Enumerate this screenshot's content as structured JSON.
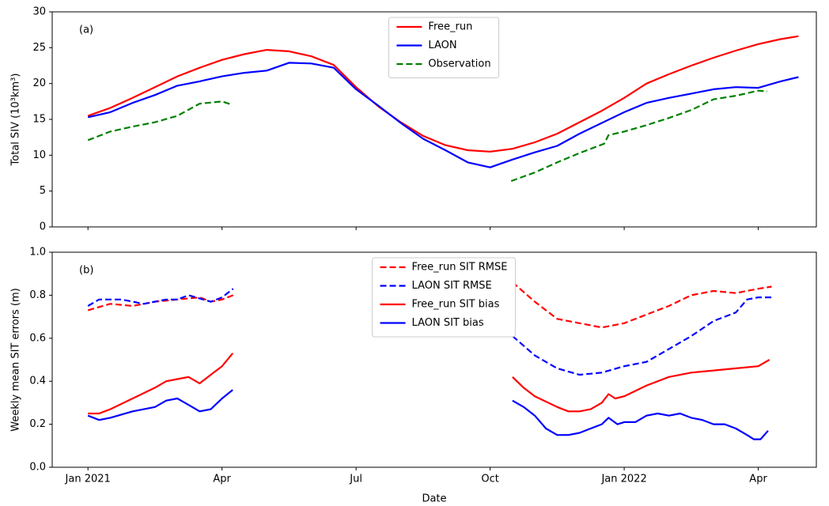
{
  "chart_data": [
    {
      "type": "line",
      "panel_label": "(a)",
      "ylabel": "Total SIV (10³km³)",
      "xlim": [
        -0.8,
        16.3
      ],
      "ylim": [
        0,
        30
      ],
      "yticks": [
        0,
        5,
        10,
        15,
        20,
        25,
        30
      ],
      "legend": "upper center",
      "series": [
        {
          "name": "Free_run",
          "color": "#ff0000",
          "dash": false,
          "x": [
            0,
            0.5,
            1,
            1.5,
            2,
            2.5,
            3,
            3.5,
            4,
            4.5,
            5,
            5.5,
            6,
            6.5,
            7,
            7.5,
            8,
            8.5,
            9,
            9.5,
            10,
            10.5,
            11,
            11.5,
            12,
            12.5,
            13,
            13.5,
            14,
            14.5,
            15,
            15.5,
            15.9
          ],
          "values": [
            15.5,
            16.6,
            18.0,
            19.5,
            21.0,
            22.2,
            23.3,
            24.1,
            24.7,
            24.5,
            23.8,
            22.6,
            19.5,
            16.8,
            14.6,
            12.7,
            11.4,
            10.7,
            10.5,
            10.9,
            11.8,
            13.0,
            14.6,
            16.2,
            18.0,
            20.0,
            21.3,
            22.5,
            23.6,
            24.6,
            25.5,
            26.2,
            26.6
          ]
        },
        {
          "name": "LAON",
          "color": "#0000ff",
          "dash": false,
          "x": [
            0,
            0.5,
            1,
            1.5,
            2,
            2.5,
            3,
            3.5,
            4,
            4.5,
            5,
            5.5,
            6,
            6.5,
            7,
            7.5,
            8,
            8.5,
            9,
            9.5,
            10,
            10.5,
            11,
            11.5,
            12,
            12.5,
            13,
            13.5,
            14,
            14.5,
            15,
            15.5,
            15.9
          ],
          "values": [
            15.3,
            16.0,
            17.3,
            18.4,
            19.7,
            20.3,
            21.0,
            21.5,
            21.8,
            22.9,
            22.8,
            22.2,
            19.2,
            16.9,
            14.5,
            12.3,
            10.7,
            9.0,
            8.3,
            9.4,
            10.4,
            11.3,
            13.0,
            14.5,
            16.0,
            17.3,
            18.0,
            18.6,
            19.2,
            19.5,
            19.4,
            20.3,
            20.9
          ]
        },
        {
          "name": "Observation",
          "color": "#008000",
          "dash": true,
          "x": [
            0,
            0.5,
            1,
            1.5,
            2,
            2.5,
            3,
            3.2,
            null,
            9.47,
            10,
            10.5,
            11,
            11.55,
            11.65,
            12,
            12.5,
            13,
            13.5,
            14,
            14.5,
            15,
            15.2
          ],
          "values": [
            12.1,
            13.3,
            14.0,
            14.6,
            15.5,
            17.2,
            17.5,
            17.1,
            null,
            6.4,
            7.6,
            9.0,
            10.3,
            11.6,
            12.8,
            13.3,
            14.2,
            15.2,
            16.3,
            17.8,
            18.3,
            19.0,
            18.9
          ]
        }
      ]
    },
    {
      "type": "line",
      "panel_label": "(b)",
      "ylabel": "Weekly mean SIT errors (m)",
      "xlabel": "Date",
      "xlim": [
        -0.8,
        16.3
      ],
      "ylim": [
        0,
        1
      ],
      "xticks": [
        {
          "value": 0,
          "label": "Jan 2021"
        },
        {
          "value": 3,
          "label": "Apr"
        },
        {
          "value": 6,
          "label": "Jul"
        },
        {
          "value": 9,
          "label": "Oct"
        },
        {
          "value": 12,
          "label": "Jan 2022"
        },
        {
          "value": 15,
          "label": "Apr"
        }
      ],
      "yticks": [
        {
          "value": 0,
          "label": "0.0"
        },
        0.2,
        0.4,
        0.6,
        0.8,
        {
          "value": 1,
          "label": "1.0"
        }
      ],
      "legend": "upper center",
      "series": [
        {
          "name": "Free_run SIT RMSE",
          "color": "#ff0000",
          "dash": true,
          "x": [
            0,
            0.5,
            1,
            1.5,
            2,
            2.5,
            2.75,
            3,
            3.25,
            null,
            9.5,
            10,
            10.5,
            11,
            11.5,
            12,
            12.5,
            13,
            13.5,
            14,
            14.5,
            15,
            15.3
          ],
          "values": [
            0.73,
            0.76,
            0.75,
            0.77,
            0.78,
            0.79,
            0.77,
            0.78,
            0.8,
            null,
            0.86,
            0.77,
            0.69,
            0.67,
            0.65,
            0.67,
            0.71,
            0.75,
            0.8,
            0.82,
            0.81,
            0.83,
            0.84
          ]
        },
        {
          "name": "LAON SIT RMSE",
          "color": "#0000ff",
          "dash": true,
          "x": [
            0,
            0.25,
            0.75,
            1.25,
            1.75,
            2,
            2.25,
            2.75,
            3,
            3.25,
            null,
            9.5,
            10,
            10.5,
            11,
            11.5,
            12,
            12.5,
            13,
            13.5,
            14,
            14.5,
            14.75,
            15,
            15.3
          ],
          "values": [
            0.75,
            0.78,
            0.78,
            0.76,
            0.78,
            0.78,
            0.8,
            0.77,
            0.79,
            0.83,
            null,
            0.61,
            0.52,
            0.46,
            0.43,
            0.44,
            0.47,
            0.49,
            0.55,
            0.61,
            0.68,
            0.72,
            0.78,
            0.79,
            0.79
          ]
        },
        {
          "name": "Free_run SIT bias",
          "color": "#ff0000",
          "dash": false,
          "x": [
            0,
            0.25,
            0.5,
            1,
            1.5,
            1.75,
            2,
            2.25,
            2.5,
            2.75,
            3,
            3.24,
            null,
            9.5,
            9.75,
            10,
            10.5,
            10.75,
            11,
            11.25,
            11.5,
            11.65,
            11.8,
            12,
            12.5,
            13,
            13.5,
            14,
            14.5,
            15,
            15.25
          ],
          "values": [
            0.25,
            0.25,
            0.27,
            0.32,
            0.37,
            0.4,
            0.41,
            0.42,
            0.39,
            0.43,
            0.47,
            0.53,
            null,
            0.42,
            0.37,
            0.33,
            0.28,
            0.26,
            0.26,
            0.27,
            0.3,
            0.34,
            0.32,
            0.33,
            0.38,
            0.42,
            0.44,
            0.45,
            0.46,
            0.47,
            0.5
          ]
        },
        {
          "name": "LAON SIT bias",
          "color": "#0000ff",
          "dash": false,
          "x": [
            0,
            0.25,
            0.5,
            1,
            1.5,
            1.75,
            2,
            2.25,
            2.5,
            2.75,
            3,
            3.24,
            null,
            9.5,
            9.75,
            10,
            10.25,
            10.5,
            10.75,
            11,
            11.25,
            11.5,
            11.65,
            11.85,
            12,
            12.25,
            12.5,
            12.75,
            13,
            13.25,
            13.5,
            13.75,
            14,
            14.25,
            14.5,
            14.75,
            14.9,
            15.05,
            15.22
          ],
          "values": [
            0.24,
            0.22,
            0.23,
            0.26,
            0.28,
            0.31,
            0.32,
            0.29,
            0.26,
            0.27,
            0.32,
            0.36,
            null,
            0.31,
            0.28,
            0.24,
            0.18,
            0.15,
            0.15,
            0.16,
            0.18,
            0.2,
            0.23,
            0.2,
            0.21,
            0.21,
            0.24,
            0.25,
            0.24,
            0.25,
            0.23,
            0.22,
            0.2,
            0.2,
            0.18,
            0.15,
            0.13,
            0.13,
            0.17
          ]
        }
      ]
    }
  ]
}
